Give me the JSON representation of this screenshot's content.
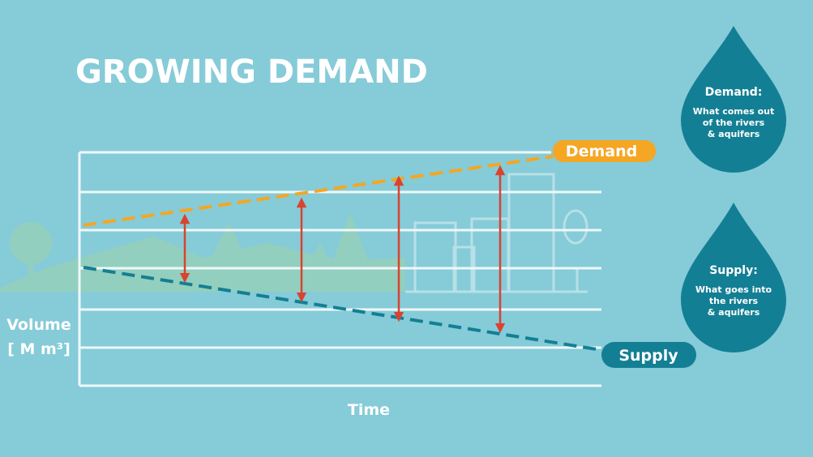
{
  "title": "GROWING DEMAND",
  "lines": {
    "demand": "Demand",
    "supply": "Supply"
  },
  "axes": {
    "y_label": "Volume",
    "y_unit": "[ M m³]",
    "x_label": "Time"
  },
  "drops": [
    {
      "heading": "Demand:",
      "lines": [
        "What comes out",
        "of the rivers",
        "& aquifers"
      ]
    },
    {
      "heading": "Supply:",
      "lines": [
        "What goes into",
        "the rivers",
        "& aquifers"
      ]
    }
  ]
}
